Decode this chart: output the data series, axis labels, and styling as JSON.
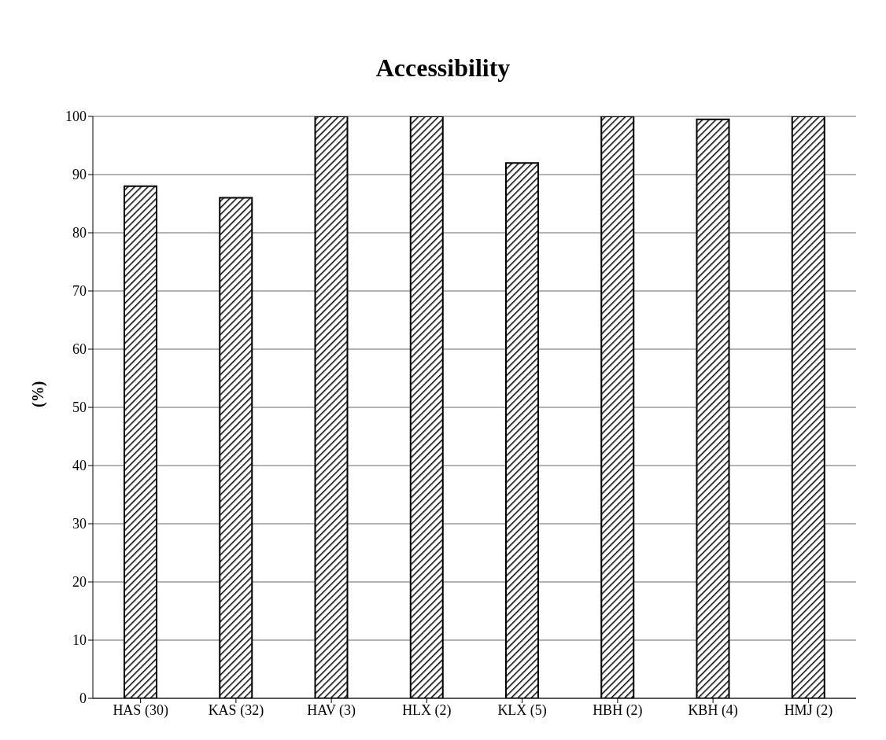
{
  "chart_data": {
    "type": "bar",
    "title": "Accessibility",
    "ylabel": "(%)",
    "categories": [
      "HAS (30)",
      "KAS (32)",
      "HAV (3)",
      "HLX (2)",
      "KLX (5)",
      "HBH (2)",
      "KBH (4)",
      "HMJ (2)"
    ],
    "values": [
      88,
      86,
      100,
      100,
      92,
      100,
      99.5,
      100
    ],
    "color": "#000000",
    "ylim": [
      0,
      100
    ],
    "yticks": [
      0,
      10,
      20,
      30,
      40,
      50,
      60,
      70,
      80,
      90,
      100
    ],
    "grid": "y"
  }
}
